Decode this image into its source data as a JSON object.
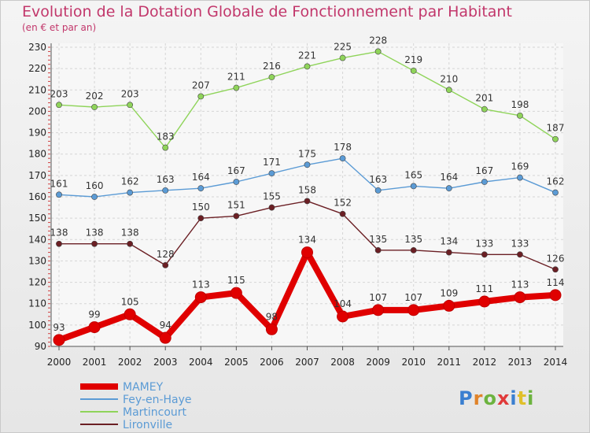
{
  "chart_data": {
    "type": "line",
    "title": "Evolution de la Dotation Globale de Fonctionnement par Habitant",
    "subtitle": "(en € et par an)",
    "x": [
      "2000",
      "2001",
      "2002",
      "2003",
      "2004",
      "2005",
      "2006",
      "2007",
      "2008",
      "2009",
      "2010",
      "2011",
      "2012",
      "2013",
      "2014"
    ],
    "ylim": [
      90,
      230
    ],
    "yticks": [
      90,
      100,
      110,
      120,
      130,
      140,
      150,
      160,
      170,
      180,
      190,
      200,
      210,
      220,
      230
    ],
    "grid": true,
    "legend": "bottom-left",
    "series": [
      {
        "name": "MAMEY",
        "color": "#e00000",
        "values": [
          93,
          99,
          105,
          94,
          113,
          115,
          98,
          134,
          104,
          107,
          107,
          109,
          111,
          113,
          114
        ]
      },
      {
        "name": "Fey-en-Haye",
        "color": "#5b9bd5",
        "values": [
          161,
          160,
          162,
          163,
          164,
          167,
          171,
          175,
          178,
          163,
          165,
          164,
          167,
          169,
          162
        ]
      },
      {
        "name": "Martincourt",
        "color": "#8fd45a",
        "values": [
          203,
          202,
          203,
          183,
          207,
          211,
          216,
          221,
          225,
          228,
          219,
          210,
          201,
          198,
          187
        ]
      },
      {
        "name": "Lironville",
        "color": "#6b1f24",
        "values": [
          138,
          138,
          138,
          128,
          150,
          151,
          155,
          158,
          152,
          135,
          135,
          134,
          133,
          133,
          126
        ]
      }
    ]
  },
  "logo": {
    "text": "Proxiti"
  }
}
